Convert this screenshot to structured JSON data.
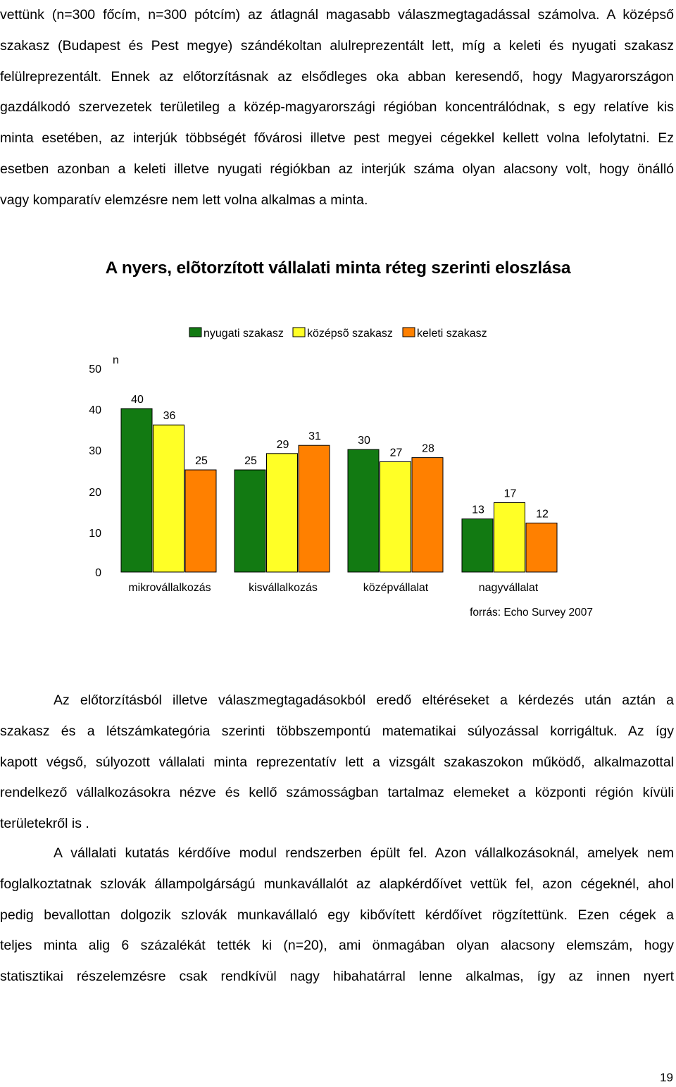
{
  "paragraph1": {
    "lines": [
      "vettünk (n=300 főcím, n=300 pótcím) az átlagnál magasabb válaszmegtagadással számolva. A középső",
      "szakasz (Budapest és Pest megye) szándékoltan alulreprezentált lett, míg a keleti és nyugati szakasz",
      "felülreprezentált. Ennek az előtorzításnak az elsődleges oka abban keresendő, hogy Magyarországon",
      "gazdálkodó szervezetek területileg a közép-magyarországi régióban koncentrálódnak, s egy relatíve kis",
      "minta esetében, az interjúk többségét fővárosi illetve pest megyei cégekkel kellett volna lefolytatni. Ez",
      "esetben azonban a keleti illetve nyugati régiókban az interjúk száma olyan alacsony volt, hogy önálló",
      "vagy komparatív elemzésre nem lett volna alkalmas a minta."
    ]
  },
  "chart_data": {
    "type": "bar",
    "title": "A nyers, elõtorzított vállalati minta réteg szerinti eloszlása",
    "ylabel": "n",
    "source": "forrás: Echo Survey 2007",
    "categories": [
      "mikrovállalkozás",
      "kisvállalkozás",
      "középvállalat",
      "nagyvállalat"
    ],
    "series": [
      {
        "name": "nyugati szakasz",
        "color": "#127a12",
        "values": [
          40,
          25,
          30,
          13
        ]
      },
      {
        "name": "középsõ szakasz",
        "color": "#ffff26",
        "values": [
          36,
          29,
          27,
          17
        ]
      },
      {
        "name": "keleti szakasz",
        "color": "#ff8000",
        "values": [
          25,
          31,
          28,
          12
        ]
      }
    ],
    "yticks": [
      "0",
      "10",
      "20",
      "30",
      "40",
      "50"
    ],
    "ylim": [
      0,
      50
    ],
    "grid": false,
    "legend_position": "top"
  },
  "paragraph2": {
    "lines": [
      "Az előtorzításból illetve válaszmegtagadásokból eredő eltéréseket a kérdezés után aztán a",
      "szakasz és a létszámkategória szerinti többszempontú matematikai súlyozással korrigáltuk. Az így",
      "kapott végső, súlyozott vállalati minta reprezentatív lett a vizsgált szakaszokon működő, alkalmazottal",
      "rendelkező vállalkozásokra nézve és kellő számosságban tartalmaz elemeket a központi régión kívüli",
      "területekről is ."
    ]
  },
  "paragraph3": {
    "lines": [
      "A vállalati kutatás kérdőíve modul rendszerben épült fel. Azon vállalkozásoknál, amelyek nem",
      "foglalkoztatnak szlovák állampolgárságú munkavállalót az alapkérdőívet vettük fel, azon cégeknél, ahol",
      "pedig bevallottan dolgozik szlovák munkavállaló egy kibővített kérdőívet rögzítettünk. Ezen cégek a",
      "teljes minta alig 6 százalékát tették ki (n=20), ami önmagában olyan alacsony elemszám, hogy",
      "statisztikai részelemzésre csak rendkívül nagy hibahatárral lenne alkalmas, így az innen nyert"
    ]
  },
  "page_number": "19"
}
